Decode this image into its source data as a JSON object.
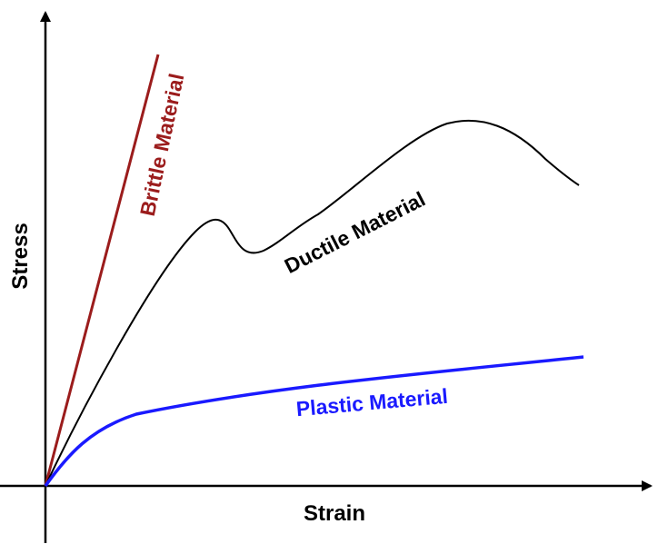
{
  "diagram": {
    "axes": {
      "x_label": "Strain",
      "y_label": "Stress"
    },
    "curves": [
      {
        "id": "brittle",
        "label": "Brittle Material",
        "color": "#9b1c1c"
      },
      {
        "id": "ductile",
        "label": "Ductile Material",
        "color": "#000000"
      },
      {
        "id": "plastic",
        "label": "Plastic Material",
        "color": "#1a1aff"
      }
    ]
  }
}
